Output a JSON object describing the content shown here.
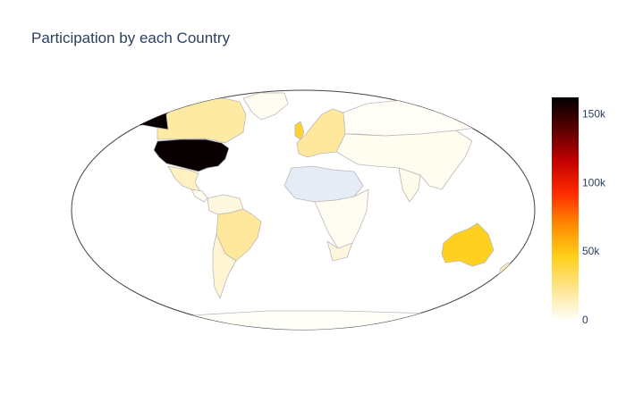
{
  "title": "Participation by each Country",
  "colorbar": {
    "ticks": [
      {
        "label": "150k",
        "value": 150000
      },
      {
        "label": "100k",
        "value": 100000
      },
      {
        "label": "50k",
        "value": 50000
      },
      {
        "label": "0",
        "value": 0
      }
    ],
    "range": [
      0,
      162000
    ],
    "colors": [
      "#fffef9",
      "#ffe48c",
      "#ffcf1a",
      "#ff8a00",
      "#ff2a00",
      "#c20000",
      "#5a0000",
      "#000000"
    ]
  },
  "chart_data": {
    "type": "choropleth",
    "projection": "natural earth",
    "z_range": [
      0,
      162000
    ],
    "regions": [
      {
        "name": "United States",
        "value": 160000
      },
      {
        "name": "Alaska",
        "value": 160000
      },
      {
        "name": "Canada",
        "value": 18000
      },
      {
        "name": "Greenland",
        "value": 1500
      },
      {
        "name": "Mexico",
        "value": 12000
      },
      {
        "name": "Central America",
        "value": 2000
      },
      {
        "name": "Colombia/Venezuela",
        "value": 5000
      },
      {
        "name": "Brazil",
        "value": 20000
      },
      {
        "name": "Argentina/Chile",
        "value": 8000
      },
      {
        "name": "United Kingdom",
        "value": 42000
      },
      {
        "name": "Europe",
        "value": 20000
      },
      {
        "name": "Russia",
        "value": 800
      },
      {
        "name": "Asia",
        "value": 2000
      },
      {
        "name": "India",
        "value": 3000
      },
      {
        "name": "Africa (Sahel)",
        "value": 0
      },
      {
        "name": "Africa",
        "value": 1500
      },
      {
        "name": "South Africa",
        "value": 6000
      },
      {
        "name": "Australia",
        "value": 45000
      },
      {
        "name": "New Zealand",
        "value": 12000
      },
      {
        "name": "Antarctica",
        "value": 0
      }
    ]
  }
}
